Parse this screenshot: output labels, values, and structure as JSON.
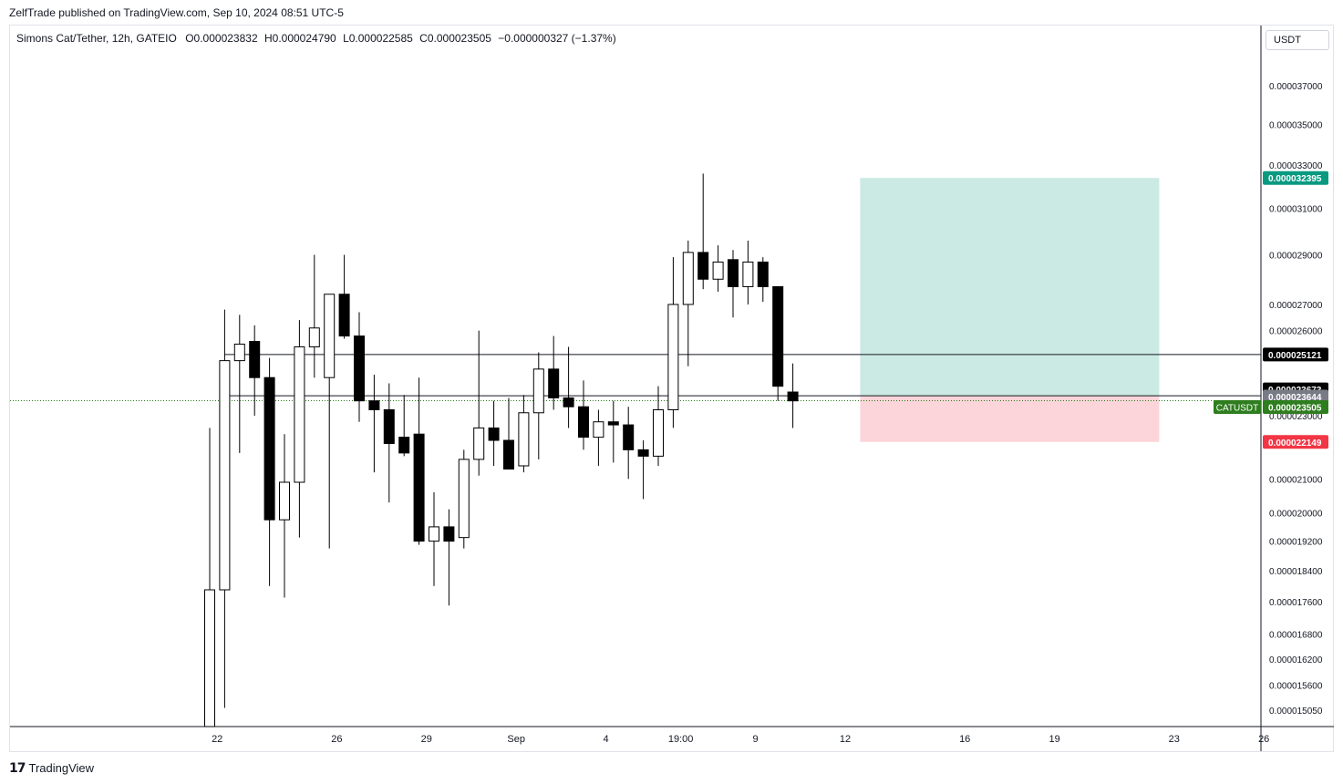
{
  "header": {
    "published_text": "ZelfTrade published on TradingView.com, Sep 10, 2024 08:51 UTC-5"
  },
  "legend": {
    "symbol": "Simons Cat/Tether, 12h, GATEIO",
    "o_label": "O",
    "o_value": "0.000023832",
    "h_label": "H",
    "h_value": "0.000024790",
    "l_label": "L",
    "l_value": "0.000022585",
    "c_label": "C",
    "c_value": "0.000023505",
    "change": "−0.000000327 (−1.37%)"
  },
  "price_axis": {
    "currency": "USDT"
  },
  "footer": {
    "brand": "TradingView"
  },
  "colors": {
    "bull_fill": "#ffffff",
    "bear_fill": "#000000",
    "wick": "#000000",
    "target_zone": "#cceae4",
    "stop_zone": "#fbd5d9",
    "label_target": "#089981",
    "label_stop": "#f23645",
    "label_last": "#2e7d1e",
    "label_level": "#000000",
    "label_prev_close": "#787b86"
  },
  "chart_data": {
    "type": "candlestick",
    "title": "Simons Cat/Tether, 12h, GATEIO",
    "yscale": "log",
    "ylim": [
      1.47e-05,
      3.92e-05
    ],
    "y_ticks": [
      "0.000037000",
      "0.000035000",
      "0.000033000",
      "0.000031000",
      "0.000029000",
      "0.000027000",
      "0.000026000",
      "0.000023000",
      "0.000021000",
      "0.000020000",
      "0.000019200",
      "0.000018400",
      "0.000017600",
      "0.000016800",
      "0.000016200",
      "0.000015600",
      "0.000015050"
    ],
    "x_ticks": [
      {
        "label": "22",
        "bar": 0.5
      },
      {
        "label": "26",
        "bar": 8.5
      },
      {
        "label": "29",
        "bar": 14.5
      },
      {
        "label": "Sep",
        "bar": 20.5
      },
      {
        "label": "4",
        "bar": 26.5
      },
      {
        "label": "19:00",
        "bar": 31.5
      },
      {
        "label": "9",
        "bar": 36.5
      },
      {
        "label": "12",
        "bar": 42.5
      },
      {
        "label": "16",
        "bar": 50.5
      },
      {
        "label": "19",
        "bar": 56.5
      },
      {
        "label": "23",
        "bar": 64.5
      },
      {
        "label": "26",
        "bar": 70.5
      }
    ],
    "candles": [
      {
        "o": 1.47e-05,
        "h": 2.26e-05,
        "l": 1.47e-05,
        "c": 1.79e-05
      },
      {
        "o": 1.79e-05,
        "h": 2.68e-05,
        "l": 1.51e-05,
        "c": 2.49e-05
      },
      {
        "o": 2.49e-05,
        "h": 2.66e-05,
        "l": 2.18e-05,
        "c": 2.55e-05
      },
      {
        "o": 2.56e-05,
        "h": 2.62e-05,
        "l": 2.3e-05,
        "c": 2.43e-05
      },
      {
        "o": 2.43e-05,
        "h": 2.5e-05,
        "l": 1.8e-05,
        "c": 1.98e-05
      },
      {
        "o": 1.98e-05,
        "h": 2.24e-05,
        "l": 1.77e-05,
        "c": 2.09e-05
      },
      {
        "o": 2.09e-05,
        "h": 2.64e-05,
        "l": 1.93e-05,
        "c": 2.54e-05
      },
      {
        "o": 2.54e-05,
        "h": 2.9e-05,
        "l": 2.43e-05,
        "c": 2.61e-05
      },
      {
        "o": 2.43e-05,
        "h": 2.74e-05,
        "l": 1.9e-05,
        "c": 2.74e-05
      },
      {
        "o": 2.74e-05,
        "h": 2.9e-05,
        "l": 2.57e-05,
        "c": 2.58e-05
      },
      {
        "o": 2.58e-05,
        "h": 2.67e-05,
        "l": 2.28e-05,
        "c": 2.35e-05
      },
      {
        "o": 2.35e-05,
        "h": 2.44e-05,
        "l": 2.12e-05,
        "c": 2.32e-05
      },
      {
        "o": 2.32e-05,
        "h": 2.41e-05,
        "l": 2.03e-05,
        "c": 2.21e-05
      },
      {
        "o": 2.23e-05,
        "h": 2.37e-05,
        "l": 2.17e-05,
        "c": 2.18e-05
      },
      {
        "o": 2.24e-05,
        "h": 2.43e-05,
        "l": 1.91e-05,
        "c": 1.92e-05
      },
      {
        "o": 1.92e-05,
        "h": 2.06e-05,
        "l": 1.8e-05,
        "c": 1.96e-05
      },
      {
        "o": 1.96e-05,
        "h": 2.01e-05,
        "l": 1.75e-05,
        "c": 1.92e-05
      },
      {
        "o": 1.93e-05,
        "h": 2.19e-05,
        "l": 1.9e-05,
        "c": 2.16e-05
      },
      {
        "o": 2.16e-05,
        "h": 2.6e-05,
        "l": 2.11e-05,
        "c": 2.26e-05
      },
      {
        "o": 2.26e-05,
        "h": 2.35e-05,
        "l": 2.14e-05,
        "c": 2.22e-05
      },
      {
        "o": 2.22e-05,
        "h": 2.36e-05,
        "l": 2.13e-05,
        "c": 2.13e-05
      },
      {
        "o": 2.14e-05,
        "h": 2.37e-05,
        "l": 2.12e-05,
        "c": 2.31e-05
      },
      {
        "o": 2.31e-05,
        "h": 2.52e-05,
        "l": 2.16e-05,
        "c": 2.46e-05
      },
      {
        "o": 2.46e-05,
        "h": 2.58e-05,
        "l": 2.32e-05,
        "c": 2.36e-05
      },
      {
        "o": 2.36e-05,
        "h": 2.54e-05,
        "l": 2.26e-05,
        "c": 2.33e-05
      },
      {
        "o": 2.33e-05,
        "h": 2.42e-05,
        "l": 2.19e-05,
        "c": 2.23e-05
      },
      {
        "o": 2.23e-05,
        "h": 2.32e-05,
        "l": 2.14e-05,
        "c": 2.28e-05
      },
      {
        "o": 2.28e-05,
        "h": 2.35e-05,
        "l": 2.15e-05,
        "c": 2.27e-05
      },
      {
        "o": 2.27e-05,
        "h": 2.33e-05,
        "l": 2.1e-05,
        "c": 2.19e-05
      },
      {
        "o": 2.19e-05,
        "h": 2.22e-05,
        "l": 2.04e-05,
        "c": 2.17e-05
      },
      {
        "o": 2.17e-05,
        "h": 2.4e-05,
        "l": 2.14e-05,
        "c": 2.32e-05
      },
      {
        "o": 2.32e-05,
        "h": 2.89e-05,
        "l": 2.26e-05,
        "c": 2.7e-05
      },
      {
        "o": 2.7e-05,
        "h": 2.96e-05,
        "l": 2.47e-05,
        "c": 2.91e-05
      },
      {
        "o": 2.91e-05,
        "h": 3.26e-05,
        "l": 2.76e-05,
        "c": 2.8e-05
      },
      {
        "o": 2.8e-05,
        "h": 2.94e-05,
        "l": 2.75e-05,
        "c": 2.87e-05
      },
      {
        "o": 2.88e-05,
        "h": 2.92e-05,
        "l": 2.65e-05,
        "c": 2.77e-05
      },
      {
        "o": 2.77e-05,
        "h": 2.96e-05,
        "l": 2.7e-05,
        "c": 2.87e-05
      },
      {
        "o": 2.87e-05,
        "h": 2.89e-05,
        "l": 2.71e-05,
        "c": 2.77e-05
      },
      {
        "o": 2.77e-05,
        "h": 2.77e-05,
        "l": 2.35e-05,
        "c": 2.4e-05
      },
      {
        "o": 2.38e-05,
        "h": 2.48e-05,
        "l": 2.26e-05,
        "c": 2.35e-05
      }
    ],
    "horizontal_lines": [
      2.5121e-05,
      2.3673e-05
    ],
    "last_price": 2.3505e-05,
    "position_tool": {
      "entry": 2.3673e-05,
      "target": 3.2395e-05,
      "stop": 2.2149e-05,
      "start_bar": 43.5,
      "end_bar": 63.5
    },
    "price_labels": [
      {
        "text": "0.000032395",
        "role": "target"
      },
      {
        "text": "0.000025121",
        "role": "level"
      },
      {
        "text": "0.000023673",
        "role": "level"
      },
      {
        "text": "0.000023644",
        "role": "prev_close"
      },
      {
        "text": "0.000023505",
        "role": "last",
        "symbol": "CATUSDT"
      },
      {
        "text": "0.000022149",
        "role": "stop"
      }
    ]
  }
}
